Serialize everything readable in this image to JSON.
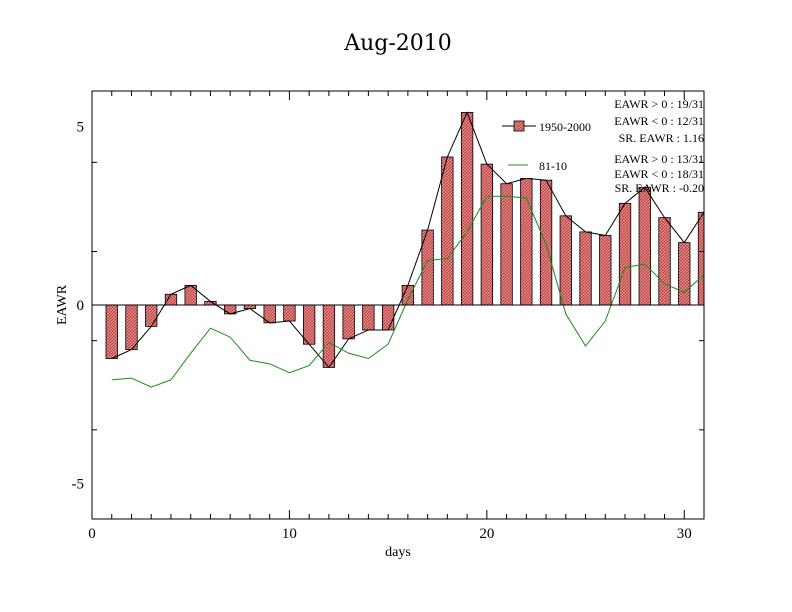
{
  "chart_data": {
    "type": "bar",
    "title": "Aug-2010",
    "xlabel": "days",
    "ylabel": "EAWR",
    "xlim": [
      0,
      31
    ],
    "ylim": [
      -6,
      6
    ],
    "xticks": [
      0,
      10,
      20,
      30
    ],
    "xtick_labels": [
      "0",
      "10",
      "20",
      "30"
    ],
    "yticks": [
      -5,
      0,
      5
    ],
    "ytick_labels": [
      "-5",
      "0",
      "5"
    ],
    "grid": false,
    "legend_position": "top-right",
    "x": [
      1,
      2,
      3,
      4,
      5,
      6,
      7,
      8,
      9,
      10,
      11,
      12,
      13,
      14,
      15,
      16,
      17,
      18,
      19,
      20,
      21,
      22,
      23,
      24,
      25,
      26,
      27,
      28,
      29,
      30,
      31
    ],
    "series": [
      {
        "name": "1950-2000",
        "kind": "bar-with-line",
        "color": "#d96060",
        "values": [
          -1.5,
          -1.25,
          -0.6,
          0.3,
          0.55,
          0.1,
          -0.25,
          -0.1,
          -0.5,
          -0.45,
          -1.1,
          -1.75,
          -0.95,
          -0.7,
          -0.7,
          0.55,
          2.1,
          4.15,
          5.4,
          3.95,
          3.4,
          3.55,
          3.5,
          2.5,
          2.05,
          1.95,
          2.85,
          3.3,
          2.45,
          1.75,
          2.6
        ]
      },
      {
        "name": "81-10",
        "kind": "line",
        "color": "#1a8c1a",
        "values": [
          -2.1,
          -2.05,
          -2.3,
          -2.1,
          -1.35,
          -0.65,
          -0.9,
          -1.55,
          -1.65,
          -1.9,
          -1.7,
          -1.05,
          -1.35,
          -1.5,
          -1.1,
          0.15,
          1.25,
          1.3,
          2.05,
          3.05,
          3.05,
          3.0,
          1.7,
          -0.25,
          -1.15,
          -0.45,
          1.05,
          1.15,
          0.6,
          0.35,
          0.85
        ]
      }
    ],
    "stats": [
      {
        "lines": [
          "EAWR > 0 : 19/31",
          "EAWR < 0 : 12/31",
          "SR. EAWR :  1.16"
        ]
      },
      {
        "lines": [
          "EAWR > 0 : 13/31",
          "EAWR < 0 : 18/31",
          "SR. EAWR : -0.20"
        ]
      }
    ]
  }
}
